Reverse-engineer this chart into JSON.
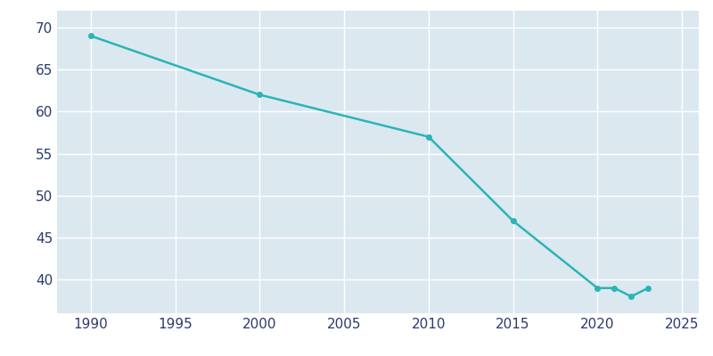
{
  "years": [
    1990,
    2000,
    2010,
    2015,
    2020,
    2021,
    2022,
    2023
  ],
  "population": [
    69,
    62,
    57,
    47,
    39,
    39,
    38,
    39
  ],
  "line_color": "#2ab5b5",
  "marker_color": "#2ab5b5",
  "fig_bg_color": "#ffffff",
  "plot_bg_color": "#dce8f0",
  "grid_color": "#ffffff",
  "xlim": [
    1988,
    2026
  ],
  "ylim": [
    36,
    72
  ],
  "xticks": [
    1990,
    1995,
    2000,
    2005,
    2010,
    2015,
    2020,
    2025
  ],
  "yticks": [
    40,
    45,
    50,
    55,
    60,
    65,
    70
  ],
  "tick_color": "#2b3a6e",
  "tick_fontsize": 11
}
